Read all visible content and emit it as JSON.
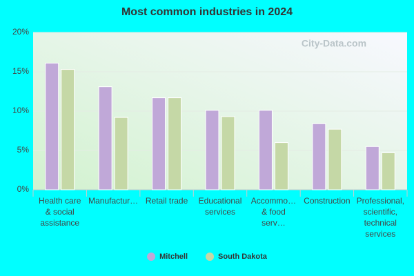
{
  "chart_data": {
    "type": "bar",
    "title": "Most common industries in 2024",
    "watermark": "City-Data.com",
    "categories": [
      "Health care & social assistance",
      "Manufactur…",
      "Retail trade",
      "Educational services",
      "Accommo… & food serv…",
      "Construction",
      "Professional, scientific, technical services"
    ],
    "series": [
      {
        "name": "Mitchell",
        "color": "#c0a8d8",
        "values": [
          16.1,
          13.1,
          11.7,
          10.1,
          10.1,
          8.4,
          5.5
        ]
      },
      {
        "name": "South Dakota",
        "color": "#c5d8a6",
        "values": [
          15.3,
          9.2,
          11.7,
          9.3,
          6.0,
          7.7,
          4.7
        ]
      }
    ],
    "ylim": [
      0,
      20
    ],
    "yticks": [
      {
        "value": 0,
        "label": "0%"
      },
      {
        "value": 5,
        "label": "5%"
      },
      {
        "value": 10,
        "label": "10%"
      },
      {
        "value": 15,
        "label": "15%"
      },
      {
        "value": 20,
        "label": "20%"
      }
    ],
    "grid": true
  }
}
